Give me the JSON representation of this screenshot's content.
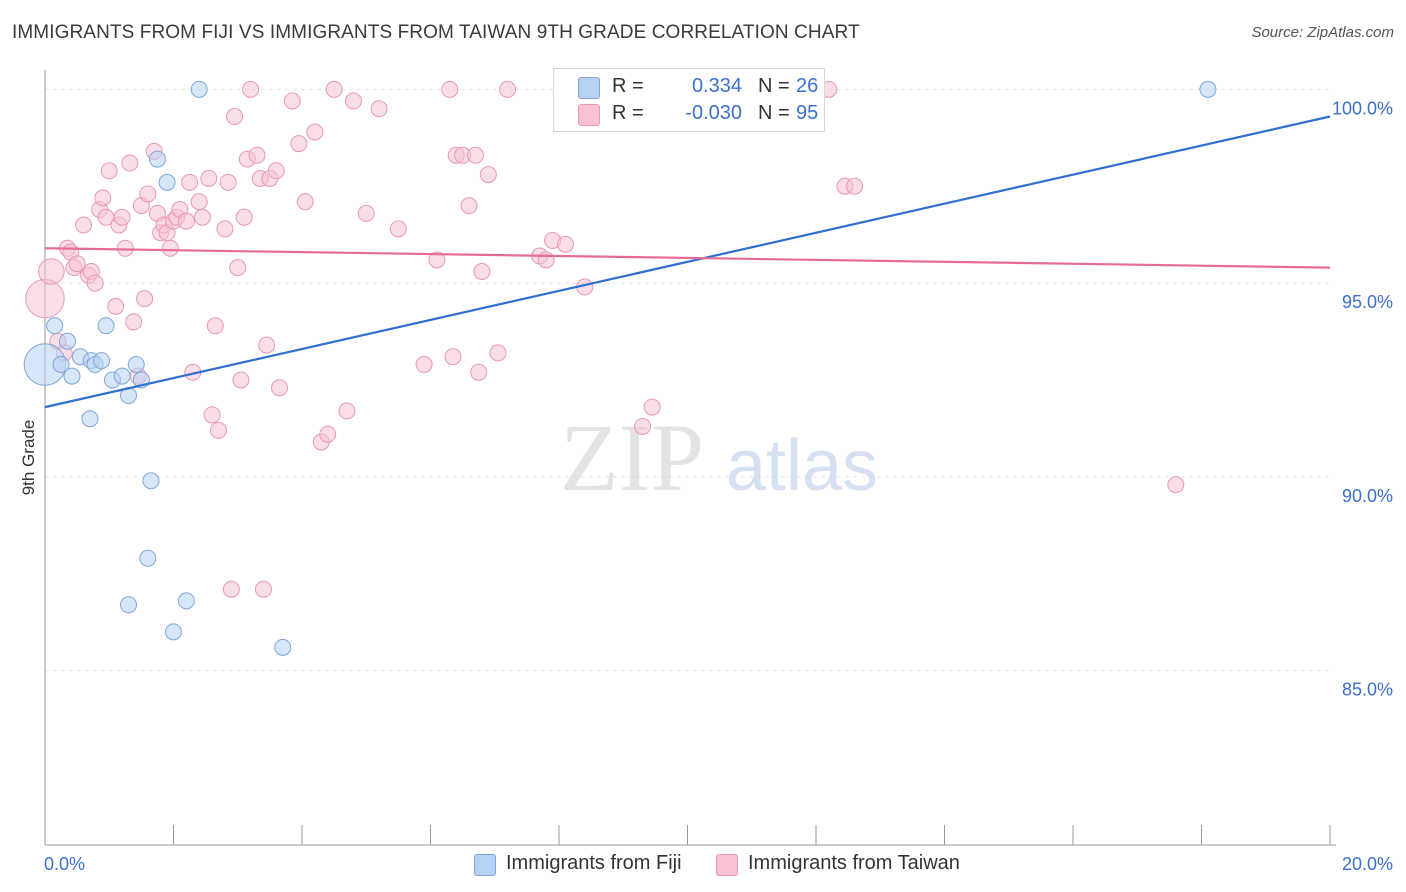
{
  "title": "IMMIGRANTS FROM FIJI VS IMMIGRANTS FROM TAIWAN 9TH GRADE CORRELATION CHART",
  "source": "Source: ZipAtlas.com",
  "watermark": {
    "zip": "ZIP",
    "atlas": "atlas"
  },
  "legend": {
    "r_label": "R =",
    "n_label": "N =",
    "rows": [
      {
        "r": "0.334",
        "n": "26"
      },
      {
        "r": "-0.030",
        "n": "95"
      }
    ]
  },
  "bottom_legend": [
    "Immigrants from Fiji",
    "Immigrants from Taiwan"
  ],
  "colors": {
    "fiji_fill": "#b6d1f2",
    "fiji_stroke": "#7fa6da",
    "fiji_line": "#2e6fd0",
    "taiwan_fill": "#f6c2d3",
    "taiwan_stroke": "#e998b5",
    "taiwan_line": "#e66b97",
    "tick_label": "#3b6fd1",
    "grid": "#e3e3e3"
  },
  "chart_data": {
    "type": "scatter",
    "xlabel": "",
    "ylabel": "9th Grade",
    "xlim": [
      0,
      20
    ],
    "ylim": [
      80.5,
      100.5
    ],
    "x_tick_labels": [
      {
        "v": 0,
        "t": "0.0%"
      },
      {
        "v": 20,
        "t": "20.0%"
      }
    ],
    "y_tick_labels": [
      {
        "v": 100,
        "t": "100.0%"
      },
      {
        "v": 95,
        "t": "95.0%"
      },
      {
        "v": 90,
        "t": "90.0%"
      },
      {
        "v": 85,
        "t": "85.0%"
      }
    ],
    "grid": true,
    "series": [
      {
        "name": "Immigrants from Fiji",
        "R": 0.334,
        "N": 26,
        "trend": [
          [
            0,
            91.8
          ],
          [
            20,
            99.3
          ]
        ],
        "points": [
          [
            0.0,
            92.9,
            2.6
          ],
          [
            0.15,
            93.9,
            1
          ],
          [
            0.25,
            92.9,
            1
          ],
          [
            0.35,
            93.5,
            1
          ],
          [
            0.42,
            92.6,
            1
          ],
          [
            0.55,
            93.1,
            1
          ],
          [
            0.72,
            93.0,
            1
          ],
          [
            0.78,
            92.9,
            1
          ],
          [
            0.88,
            93.0,
            1
          ],
          [
            0.7,
            91.5,
            1
          ],
          [
            0.95,
            93.9,
            1
          ],
          [
            1.05,
            92.5,
            1
          ],
          [
            1.2,
            92.6,
            1
          ],
          [
            1.3,
            92.1,
            1
          ],
          [
            1.42,
            92.9,
            1
          ],
          [
            1.5,
            92.5,
            1
          ],
          [
            1.6,
            87.9,
            1
          ],
          [
            1.65,
            89.9,
            1
          ],
          [
            1.75,
            98.2,
            1
          ],
          [
            1.9,
            97.6,
            1
          ],
          [
            1.3,
            86.7,
            1
          ],
          [
            2.0,
            86.0,
            1
          ],
          [
            2.2,
            86.8,
            1
          ],
          [
            2.4,
            100.0,
            1
          ],
          [
            3.7,
            85.6,
            1
          ],
          [
            18.1,
            100.0,
            1
          ]
        ]
      },
      {
        "name": "Immigrants from Taiwan",
        "R": -0.03,
        "N": 95,
        "trend": [
          [
            0,
            95.9
          ],
          [
            20,
            95.4
          ]
        ],
        "points": [
          [
            0.0,
            94.6,
            2.4
          ],
          [
            0.1,
            95.3,
            1.6
          ],
          [
            0.2,
            93.5,
            1
          ],
          [
            0.3,
            93.2,
            1
          ],
          [
            0.35,
            95.9,
            1
          ],
          [
            0.4,
            95.8,
            1
          ],
          [
            0.45,
            95.4,
            1
          ],
          [
            0.5,
            95.5,
            1
          ],
          [
            0.6,
            96.5,
            1
          ],
          [
            0.68,
            95.2,
            1
          ],
          [
            0.72,
            95.3,
            1
          ],
          [
            0.78,
            95.0,
            1
          ],
          [
            0.85,
            96.9,
            1
          ],
          [
            0.9,
            97.2,
            1
          ],
          [
            0.95,
            96.7,
            1
          ],
          [
            1.0,
            97.9,
            1
          ],
          [
            1.1,
            94.4,
            1
          ],
          [
            1.15,
            96.5,
            1
          ],
          [
            1.2,
            96.7,
            1
          ],
          [
            1.25,
            95.9,
            1
          ],
          [
            1.32,
            98.1,
            1
          ],
          [
            1.38,
            94.0,
            1
          ],
          [
            1.45,
            92.6,
            1
          ],
          [
            1.5,
            97.0,
            1
          ],
          [
            1.55,
            94.6,
            1
          ],
          [
            1.6,
            97.3,
            1
          ],
          [
            1.7,
            98.4,
            1
          ],
          [
            1.75,
            96.8,
            1
          ],
          [
            1.8,
            96.3,
            1
          ],
          [
            1.85,
            96.5,
            1
          ],
          [
            1.9,
            96.3,
            1
          ],
          [
            1.95,
            95.9,
            1
          ],
          [
            2.0,
            96.6,
            1
          ],
          [
            2.05,
            96.7,
            1
          ],
          [
            2.1,
            96.9,
            1
          ],
          [
            2.2,
            96.6,
            1
          ],
          [
            2.25,
            97.6,
            1
          ],
          [
            2.3,
            92.7,
            1
          ],
          [
            2.4,
            97.1,
            1
          ],
          [
            2.45,
            96.7,
            1
          ],
          [
            2.55,
            97.7,
            1
          ],
          [
            2.6,
            91.6,
            1
          ],
          [
            2.65,
            93.9,
            1
          ],
          [
            2.7,
            91.2,
            1
          ],
          [
            2.8,
            96.4,
            1
          ],
          [
            2.85,
            97.6,
            1
          ],
          [
            2.9,
            87.1,
            1
          ],
          [
            2.95,
            99.3,
            1
          ],
          [
            3.0,
            95.4,
            1
          ],
          [
            3.05,
            92.5,
            1
          ],
          [
            3.1,
            96.7,
            1
          ],
          [
            3.15,
            98.2,
            1
          ],
          [
            3.2,
            100.0,
            1
          ],
          [
            3.3,
            98.3,
            1
          ],
          [
            3.35,
            97.7,
            1
          ],
          [
            3.4,
            87.1,
            1
          ],
          [
            3.45,
            93.4,
            1
          ],
          [
            3.5,
            97.7,
            1
          ],
          [
            3.6,
            97.9,
            1
          ],
          [
            3.65,
            92.3,
            1
          ],
          [
            3.85,
            99.7,
            1
          ],
          [
            3.95,
            98.6,
            1
          ],
          [
            4.05,
            97.1,
            1
          ],
          [
            4.2,
            98.9,
            1
          ],
          [
            4.3,
            90.9,
            1
          ],
          [
            4.4,
            91.1,
            1
          ],
          [
            4.5,
            100.0,
            1
          ],
          [
            4.7,
            91.7,
            1
          ],
          [
            4.8,
            99.7,
            1
          ],
          [
            5.0,
            96.8,
            1
          ],
          [
            5.2,
            99.5,
            1
          ],
          [
            5.5,
            96.4,
            1
          ],
          [
            5.9,
            92.9,
            1
          ],
          [
            6.1,
            95.6,
            1
          ],
          [
            6.3,
            100.0,
            1
          ],
          [
            6.35,
            93.1,
            1
          ],
          [
            6.4,
            98.3,
            1
          ],
          [
            6.5,
            98.3,
            1
          ],
          [
            6.6,
            97.0,
            1
          ],
          [
            6.7,
            98.3,
            1
          ],
          [
            6.75,
            92.7,
            1
          ],
          [
            6.8,
            95.3,
            1
          ],
          [
            6.9,
            97.8,
            1
          ],
          [
            7.05,
            93.2,
            1
          ],
          [
            7.2,
            100.0,
            1
          ],
          [
            7.7,
            95.7,
            1
          ],
          [
            7.8,
            95.6,
            1
          ],
          [
            7.9,
            96.1,
            1
          ],
          [
            8.1,
            96.0,
            1
          ],
          [
            8.4,
            94.9,
            1
          ],
          [
            9.3,
            91.3,
            1
          ],
          [
            9.45,
            91.8,
            1
          ],
          [
            12.2,
            100.0,
            1
          ],
          [
            12.45,
            97.5,
            1
          ],
          [
            12.6,
            97.5,
            1
          ],
          [
            17.6,
            89.8,
            1
          ]
        ]
      }
    ]
  }
}
